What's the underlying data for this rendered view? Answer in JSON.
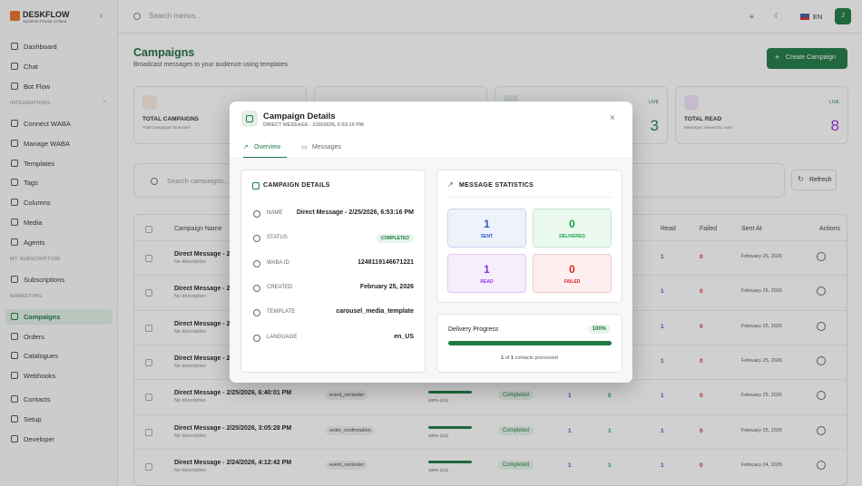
{
  "brand": {
    "name": "DESKFLOW",
    "tagline": "Systems Private Limited"
  },
  "topbar": {
    "search_placeholder": "Search menus...",
    "language": "EN",
    "user_initial": "J"
  },
  "sidebar": {
    "main": [
      "Dashboard",
      "Chat",
      "Bot Flow"
    ],
    "sections": [
      {
        "title": "INTEGRATIONS",
        "items": [
          "Connect WABA",
          "Manage WABA",
          "Templates",
          "Tags",
          "Columns",
          "Media",
          "Agents"
        ]
      },
      {
        "title": "MY SUBSCRIPTION",
        "items": [
          "Subscriptions"
        ]
      },
      {
        "title": "MARKETING",
        "items": [
          "Campaigns",
          "Orders",
          "Catalogues",
          "Webhooks",
          "Contacts",
          "Setup",
          "Developer"
        ]
      }
    ]
  },
  "page": {
    "title": "Campaigns",
    "subtitle": "Broadcast messages to your audience using templates",
    "create_button": "Create Campaign"
  },
  "stat_cards": {
    "first": {
      "label": "TOTAL CAMPAIGNS",
      "caption": "Total campaigns launched"
    },
    "third": {
      "badge": "LIVE",
      "value": 3
    },
    "fourth": {
      "label": "TOTAL READ",
      "caption": "Messages viewed by users",
      "badge": "LIVE",
      "value": 8
    }
  },
  "toolbar": {
    "search_placeholder": "Search campaigns...",
    "refresh": "Refresh"
  },
  "table": {
    "columns": {
      "name": "Campaign Name",
      "read": "Read",
      "failed": "Failed",
      "sent_at": "Sent At",
      "actions": "Actions"
    },
    "rows": [
      {
        "name": "Direct Message - 2",
        "description": "No description",
        "read": 1,
        "failed": 0,
        "sent_at": "February 25, 2026"
      },
      {
        "name": "Direct Message - 2",
        "description": "No description",
        "read": 1,
        "failed": 0,
        "sent_at": "February 25, 2026"
      },
      {
        "name": "Direct Message - 2",
        "description": "No description",
        "read": 1,
        "failed": 0,
        "sent_at": "February 25, 2026"
      },
      {
        "name": "Direct Message - 2",
        "description": "No description",
        "read": 1,
        "failed": 0,
        "sent_at": "February 25, 2026"
      },
      {
        "name": "Direct Message - 2/25/2026, 6:40:01 PM",
        "description": "No description",
        "template": "event_reminder",
        "progress": "100% (1/1)",
        "status": "Completed",
        "sent": 1,
        "delivered": 0,
        "read": 1,
        "failed": 0,
        "sent_at": "February 25, 2026"
      },
      {
        "name": "Direct Message - 2/25/2026, 3:05:28 PM",
        "description": "No description",
        "template": "order_confirmation",
        "progress": "100% (1/1)",
        "status": "Completed",
        "sent": 1,
        "delivered": 1,
        "read": 1,
        "failed": 0,
        "sent_at": "February 25, 2026"
      },
      {
        "name": "Direct Message - 2/24/2026, 4:12:42 PM",
        "description": "No description",
        "template": "event_reminder",
        "progress": "100% (1/1)",
        "status": "Completed",
        "sent": 1,
        "delivered": 1,
        "read": 1,
        "failed": 0,
        "sent_at": "February 24, 2026"
      }
    ]
  },
  "modal": {
    "title": "Campaign Details",
    "subtitle": "DIRECT MESSAGE - 2/25/2026, 6:53:16 PM",
    "tabs": [
      "Overview",
      "Messages"
    ],
    "details": {
      "title": "CAMPAIGN DETAILS",
      "fields": [
        {
          "label": "NAME",
          "value": "Direct Message - 2/25/2026, 6:53:16 PM"
        },
        {
          "label": "STATUS",
          "value": "COMPLETED"
        },
        {
          "label": "WABA ID",
          "value": "1248119146671221"
        },
        {
          "label": "CREATED",
          "value": "February 25, 2026"
        },
        {
          "label": "TEMPLATE",
          "value": "carousel_media_template"
        },
        {
          "label": "LANGUAGE",
          "value": "en_US"
        }
      ]
    },
    "statistics": {
      "title": "MESSAGE STATISTICS",
      "items": [
        {
          "label": "SENT",
          "value": 1
        },
        {
          "label": "DELIVERED",
          "value": 0
        },
        {
          "label": "READ",
          "value": 1
        },
        {
          "label": "FAILED",
          "value": 0
        }
      ]
    },
    "delivery": {
      "title": "Delivery Progress",
      "percent": {
        "value": 100,
        "label": "100%"
      },
      "processed": 1,
      "of": "of",
      "total": 1,
      "caption": "contacts processed"
    }
  }
}
